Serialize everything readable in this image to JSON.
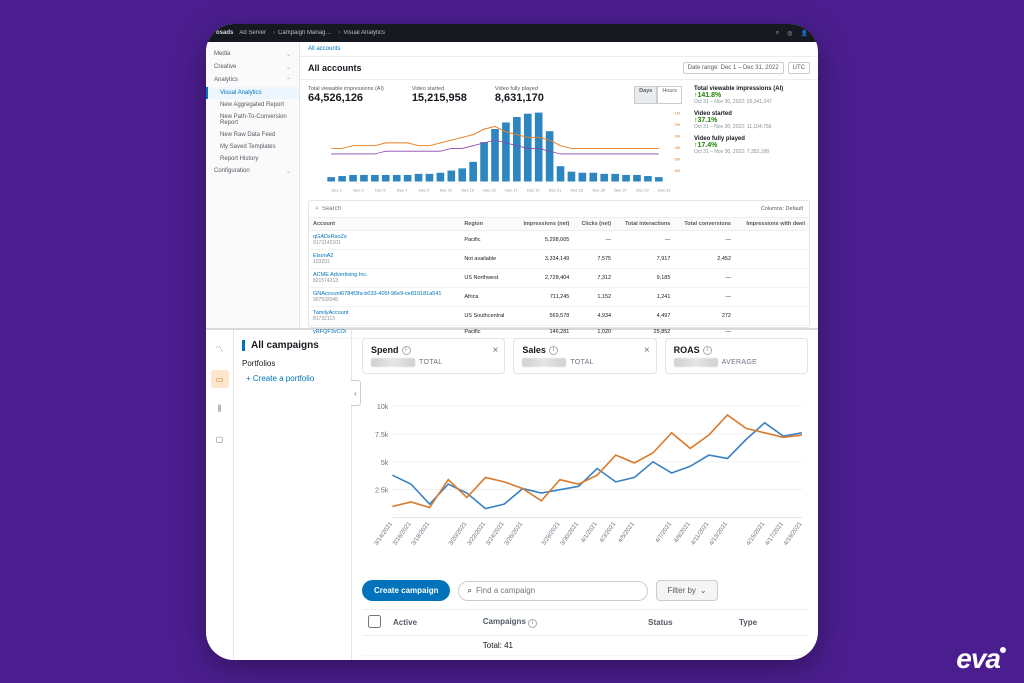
{
  "topbar": {
    "brand": "osads",
    "product": "Ad Server",
    "crumbs": [
      "Campaign Manag…",
      "Visual Analytics"
    ]
  },
  "sidebar_top": {
    "groups": [
      {
        "label": "Media",
        "open": false
      },
      {
        "label": "Creative",
        "open": false
      },
      {
        "label": "Analytics",
        "open": true,
        "items": [
          {
            "label": "Visual Analytics",
            "active": true
          },
          {
            "label": "New Aggregated Report"
          },
          {
            "label": "New Path-To-Conversion Report"
          },
          {
            "label": "New Raw Data Feed"
          },
          {
            "label": "My Saved Templates"
          },
          {
            "label": "Report History"
          }
        ]
      },
      {
        "label": "Configuration",
        "open": false
      }
    ]
  },
  "breadcrumb_small": "All accounts",
  "header": {
    "title": "All accounts",
    "date_range": "Date range: Dec 1 – Dec 31, 2022",
    "tz": "UTC"
  },
  "metrics_head": [
    {
      "label": "Total viewable impressions (AI)",
      "value": "64,526,126"
    },
    {
      "label": "Video started",
      "value": "15,215,958"
    },
    {
      "label": "Video fully played",
      "value": "8,631,170"
    }
  ],
  "view_toggle": {
    "options": [
      "Days",
      "Hours"
    ],
    "active": "Days"
  },
  "side_metrics": [
    {
      "label": "Total viewable impressions (AI)",
      "pct": "↑141.8%",
      "sub": "Oct 31 – Nov 30, 2022: 26,341,247",
      "color": "#1d8102"
    },
    {
      "label": "Video started",
      "pct": "↑37.1%",
      "sub": "Oct 31 – Nov 30, 2022: 11,104,756",
      "color": "#1d8102"
    },
    {
      "label": "Video fully played",
      "pct": "↑17.4%",
      "sub": "Oct 31 – Nov 30, 2022: 7,352,198",
      "color": "#1d8102"
    }
  ],
  "bar_chart": {
    "categories": [
      "Dec 1",
      "Dec 3",
      "Dec 5",
      "Dec 7",
      "Dec 9",
      "Dec 11",
      "Dec 13",
      "Dec 15",
      "Dec 17",
      "Dec 19",
      "Dec 21",
      "Dec 23",
      "Dec 25",
      "Dec 27",
      "Dec 29",
      "Dec 31"
    ],
    "bars": [
      0.4,
      0.5,
      0.6,
      0.6,
      0.6,
      0.6,
      0.6,
      0.6,
      0.7,
      0.7,
      0.8,
      1.0,
      1.2,
      1.8,
      3.6,
      4.8,
      5.4,
      5.9,
      6.2,
      6.3,
      4.6,
      1.4,
      0.9,
      0.8,
      0.8,
      0.7,
      0.7,
      0.6,
      0.6,
      0.5,
      0.4
    ],
    "bar_color": "#2e86c1",
    "line": [
      0.12,
      0.12,
      0.13,
      0.13,
      0.13,
      0.14,
      0.14,
      0.14,
      0.13,
      0.13,
      0.14,
      0.15,
      0.16,
      0.17,
      0.19,
      0.2,
      0.18,
      0.17,
      0.16,
      0.16,
      0.15,
      0.13,
      0.12,
      0.12,
      0.12,
      0.12,
      0.12,
      0.12,
      0.12,
      0.12,
      0.12
    ],
    "line2": [
      0.1,
      0.1,
      0.1,
      0.1,
      0.1,
      0.11,
      0.11,
      0.11,
      0.11,
      0.11,
      0.11,
      0.12,
      0.12,
      0.13,
      0.14,
      0.15,
      0.14,
      0.13,
      0.12,
      0.12,
      0.11,
      0.1,
      0.1,
      0.1,
      0.1,
      0.1,
      0.1,
      0.1,
      0.1,
      0.1,
      0.1
    ],
    "line_color": "#e67e22",
    "line2_color": "#8e44ad",
    "y_right_labels": [
      "6M",
      "5M",
      "4M",
      "3M",
      "2M",
      "1M"
    ],
    "y_left_labels": [
      "20%",
      "15%",
      "10%",
      "5%"
    ]
  },
  "search": {
    "placeholder": "Search",
    "columns_label": "Columns: Default"
  },
  "table": {
    "headers": [
      "Account",
      "Region",
      "Impressions (net)",
      "Clicks (net)",
      "Total interactions",
      "Total conversions",
      "Impressions with dwel"
    ],
    "rows": [
      {
        "name": "qGADxRsoZs",
        "id": "9173142101",
        "region": "Pacific",
        "imp": "5,298,005",
        "clk": "—",
        "ti": "—",
        "tc": "—"
      },
      {
        "name": "ElsonA2",
        "id": "103291",
        "region": "Not available",
        "imp": "3,334,149",
        "clk": "7,575",
        "ti": "7,917",
        "tc": "2,452"
      },
      {
        "name": "ACME Advertising Inc.",
        "id": "821574313",
        "region": "US Northwest",
        "imp": "2,728,404",
        "clk": "7,312",
        "ti": "9,185",
        "tc": "—"
      },
      {
        "name": "GNAccount6784f3fa-b033-405f-96e9-ce819181a541",
        "id": "907532045",
        "region": "Africa",
        "imp": "711,245",
        "clk": "1,152",
        "ti": "1,241",
        "tc": "—"
      },
      {
        "name": "TamilyAccount",
        "id": "81732113",
        "region": "US Southcentral",
        "imp": "569,578",
        "clk": "4,934",
        "ti": "4,497",
        "tc": "272"
      },
      {
        "name": "yRFQF3vCOi",
        "id": "",
        "region": "Pacific",
        "imp": "146,281",
        "clk": "1,020",
        "ti": "25,852",
        "tc": "—"
      }
    ]
  },
  "bottom": {
    "iconbar": [
      "trend",
      "wallet",
      "bars",
      "screen"
    ],
    "left_title": "All campaigns",
    "portfolios_label": "Portfolios",
    "create_portfolio": "+ Create a portfolio",
    "kpis": [
      {
        "title": "Spend",
        "sub": "TOTAL"
      },
      {
        "title": "Sales",
        "sub": "TOTAL"
      },
      {
        "title": "ROAS",
        "sub": "AVERAGE"
      }
    ],
    "line_chart": {
      "y_ticks": [
        "10k",
        "7.5k",
        "5k",
        "2.5k"
      ],
      "x_labels": [
        "3/14/2021",
        "3/16/2021",
        "3/18/2021",
        "3/20/2021",
        "3/22/2021",
        "3/24/2021",
        "3/26/2021",
        "3/28/2021",
        "3/30/2021",
        "4/1/2021",
        "4/3/2021",
        "4/5/2021",
        "4/7/2021",
        "4/9/2021",
        "4/11/2021",
        "4/13/2021",
        "4/15/2021",
        "4/17/2021",
        "4/19/2021"
      ],
      "series1": [
        1.0,
        1.4,
        0.9,
        3.4,
        1.8,
        3.6,
        3.2,
        2.6,
        1.5,
        3.4,
        3.0,
        3.8,
        5.6,
        4.9,
        5.8,
        7.6,
        6.2,
        7.4,
        9.2,
        8.0,
        7.6,
        7.2,
        7.4
      ],
      "series2": [
        3.8,
        3.0,
        1.2,
        3.0,
        2.2,
        0.8,
        1.2,
        2.6,
        2.2,
        2.5,
        2.8,
        4.4,
        3.2,
        3.6,
        5.0,
        4.0,
        4.6,
        5.6,
        5.3,
        7.0,
        8.5,
        7.3,
        7.6
      ],
      "color1": "#d97b2d",
      "color2": "#3b82c4",
      "grid": "#e5e7eb"
    },
    "create_campaign": "Create campaign",
    "find_placeholder": "Find a campaign",
    "filter_label": "Filter by",
    "table": {
      "headers": [
        "",
        "Active",
        "Campaigns",
        "Status",
        "Type"
      ],
      "total_label": "Total: 41"
    }
  },
  "brand_footer": "eva"
}
